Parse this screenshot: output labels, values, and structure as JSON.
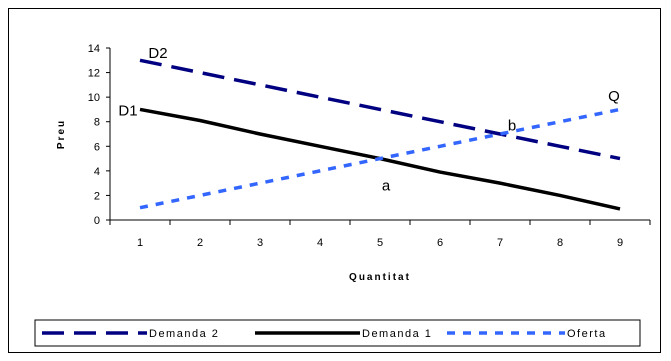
{
  "chart_data": {
    "type": "line",
    "categories": [
      "1",
      "2",
      "3",
      "4",
      "5",
      "6",
      "7",
      "8",
      "9"
    ],
    "xlabel": "Quantitat",
    "ylabel": "Preu",
    "ylim": [
      0,
      14
    ],
    "yticks": [
      "0",
      "2",
      "4",
      "6",
      "8",
      "10",
      "12",
      "14"
    ],
    "grid": false,
    "legend_position": "bottom",
    "series": [
      {
        "name": "Demanda 2",
        "values": [
          13,
          12,
          11,
          10,
          9,
          8,
          7,
          6,
          5
        ],
        "color": "#000080",
        "style": "long-dash"
      },
      {
        "name": "Demanda 1",
        "values": [
          9,
          8.1,
          7,
          6,
          5,
          3.9,
          3,
          2,
          0.9
        ],
        "color": "#000000",
        "style": "solid"
      },
      {
        "name": "Oferta",
        "values": [
          1,
          2,
          3,
          4,
          5,
          6,
          7,
          8,
          9
        ],
        "color": "#3366ff",
        "style": "short-dash"
      }
    ],
    "annotations": [
      {
        "text": "D2",
        "x": 1.3,
        "y": 13.2
      },
      {
        "text": "D1",
        "x": 0.8,
        "y": 8.5
      },
      {
        "text": "Q",
        "x": 8.9,
        "y": 9.7
      },
      {
        "text": "b",
        "x": 7.2,
        "y": 7.3
      },
      {
        "text": "a",
        "x": 5.1,
        "y": 2.4
      }
    ]
  }
}
